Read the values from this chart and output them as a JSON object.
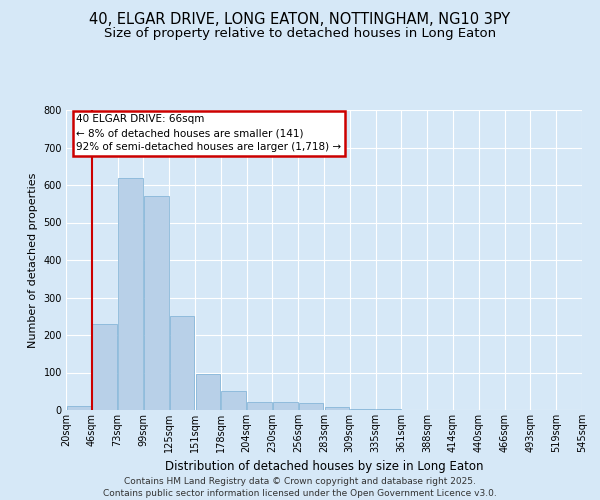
{
  "title1": "40, ELGAR DRIVE, LONG EATON, NOTTINGHAM, NG10 3PY",
  "title2": "Size of property relative to detached houses in Long Eaton",
  "xlabel": "Distribution of detached houses by size in Long Eaton",
  "ylabel": "Number of detached properties",
  "bar_values": [
    10,
    230,
    620,
    570,
    250,
    97,
    50,
    22,
    21,
    20,
    7,
    4,
    2,
    1,
    1,
    1,
    1,
    0,
    0,
    0
  ],
  "bar_labels": [
    "20sqm",
    "46sqm",
    "73sqm",
    "99sqm",
    "125sqm",
    "151sqm",
    "178sqm",
    "204sqm",
    "230sqm",
    "256sqm",
    "283sqm",
    "309sqm",
    "335sqm",
    "361sqm",
    "388sqm",
    "414sqm",
    "440sqm",
    "466sqm",
    "493sqm",
    "519sqm",
    "545sqm"
  ],
  "bar_color": "#b8d0e8",
  "bar_edge_color": "#7aafd4",
  "annotation_title": "40 ELGAR DRIVE: 66sqm",
  "annotation_line2": "← 8% of detached houses are smaller (141)",
  "annotation_line3": "92% of semi-detached houses are larger (1,718) →",
  "annotation_box_facecolor": "#ffffff",
  "annotation_border_color": "#cc0000",
  "red_line_bar_index": 1,
  "ylim": [
    0,
    800
  ],
  "yticks": [
    0,
    100,
    200,
    300,
    400,
    500,
    600,
    700,
    800
  ],
  "background_color": "#d6e8f7",
  "plot_bg_color": "#d6e8f7",
  "footer1": "Contains HM Land Registry data © Crown copyright and database right 2025.",
  "footer2": "Contains public sector information licensed under the Open Government Licence v3.0.",
  "title_fontsize": 10.5,
  "subtitle_fontsize": 9.5,
  "tick_fontsize": 7,
  "xlabel_fontsize": 8.5,
  "ylabel_fontsize": 8,
  "annotation_fontsize": 7.5,
  "footer_fontsize": 6.5
}
